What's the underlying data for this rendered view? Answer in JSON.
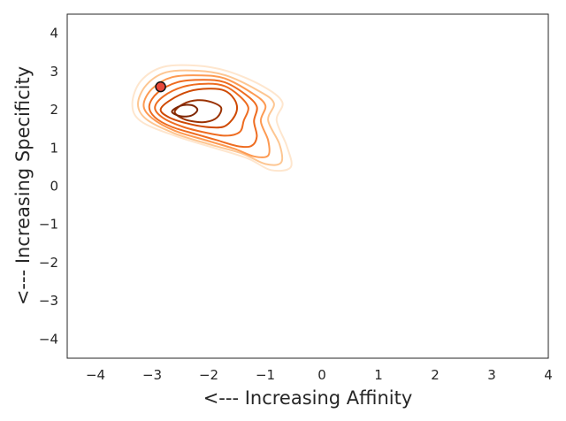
{
  "chart_data": {
    "type": "contour",
    "title": "",
    "xlabel": "<--- Increasing Affinity",
    "ylabel": "<--- Increasing Specificity",
    "xlim": [
      -4.5,
      4.0
    ],
    "ylim": [
      -4.5,
      4.5
    ],
    "xticks": [
      -4,
      -3,
      -2,
      -1,
      0,
      1,
      2,
      3,
      4
    ],
    "yticks": [
      -4,
      -3,
      -2,
      -1,
      0,
      1,
      2,
      3,
      4
    ],
    "xtick_labels": [
      "−4",
      "−3",
      "−2",
      "−1",
      "0",
      "1",
      "2",
      "3",
      "4"
    ],
    "ytick_labels": [
      "−4",
      "−3",
      "−2",
      "−1",
      "0",
      "1",
      "2",
      "3",
      "4"
    ],
    "grid": false,
    "colormap": [
      "#fee6ce",
      "#fdc692",
      "#fd9a52",
      "#ee6c20",
      "#cf4a04",
      "#9a3203",
      "#7f2704"
    ],
    "contour_levels": [
      {
        "level": 1,
        "points": [
          [
            -3.35,
            2.15
          ],
          [
            -3.2,
            2.75
          ],
          [
            -2.8,
            3.12
          ],
          [
            -2.2,
            3.15
          ],
          [
            -1.65,
            3.0
          ],
          [
            -1.05,
            2.62
          ],
          [
            -0.7,
            2.2
          ],
          [
            -0.8,
            1.72
          ],
          [
            -0.62,
            1.05
          ],
          [
            -0.55,
            0.5
          ],
          [
            -0.9,
            0.42
          ],
          [
            -1.3,
            0.72
          ],
          [
            -1.9,
            1.0
          ],
          [
            -2.6,
            1.32
          ],
          [
            -3.2,
            1.7
          ]
        ]
      },
      {
        "level": 2,
        "points": [
          [
            -3.25,
            2.15
          ],
          [
            -3.1,
            2.65
          ],
          [
            -2.75,
            2.98
          ],
          [
            -2.2,
            3.02
          ],
          [
            -1.7,
            2.9
          ],
          [
            -1.15,
            2.52
          ],
          [
            -0.85,
            2.18
          ],
          [
            -0.95,
            1.72
          ],
          [
            -0.75,
            1.1
          ],
          [
            -0.72,
            0.62
          ],
          [
            -1.0,
            0.58
          ],
          [
            -1.4,
            0.85
          ],
          [
            -1.95,
            1.08
          ],
          [
            -2.6,
            1.38
          ],
          [
            -3.1,
            1.75
          ]
        ]
      },
      {
        "level": 3,
        "points": [
          [
            -3.15,
            2.12
          ],
          [
            -3.0,
            2.55
          ],
          [
            -2.65,
            2.85
          ],
          [
            -2.15,
            2.9
          ],
          [
            -1.72,
            2.82
          ],
          [
            -1.25,
            2.45
          ],
          [
            -1.0,
            2.12
          ],
          [
            -1.08,
            1.7
          ],
          [
            -0.95,
            1.2
          ],
          [
            -0.95,
            0.8
          ],
          [
            -1.2,
            0.78
          ],
          [
            -1.55,
            0.98
          ],
          [
            -2.0,
            1.18
          ],
          [
            -2.6,
            1.45
          ],
          [
            -3.0,
            1.78
          ]
        ]
      },
      {
        "level": 4,
        "points": [
          [
            -3.05,
            2.1
          ],
          [
            -2.9,
            2.45
          ],
          [
            -2.55,
            2.72
          ],
          [
            -2.1,
            2.78
          ],
          [
            -1.72,
            2.72
          ],
          [
            -1.35,
            2.4
          ],
          [
            -1.15,
            2.08
          ],
          [
            -1.2,
            1.7
          ],
          [
            -1.15,
            1.3
          ],
          [
            -1.25,
            1.05
          ],
          [
            -1.5,
            1.05
          ],
          [
            -1.85,
            1.2
          ],
          [
            -2.2,
            1.35
          ],
          [
            -2.65,
            1.55
          ],
          [
            -2.95,
            1.8
          ]
        ]
      },
      {
        "level": 5,
        "points": [
          [
            -2.95,
            2.05
          ],
          [
            -2.8,
            2.35
          ],
          [
            -2.45,
            2.6
          ],
          [
            -2.05,
            2.68
          ],
          [
            -1.72,
            2.62
          ],
          [
            -1.45,
            2.35
          ],
          [
            -1.3,
            2.05
          ],
          [
            -1.38,
            1.72
          ],
          [
            -1.45,
            1.42
          ],
          [
            -1.7,
            1.32
          ],
          [
            -2.05,
            1.4
          ],
          [
            -2.45,
            1.55
          ],
          [
            -2.8,
            1.78
          ]
        ]
      },
      {
        "level": 6,
        "points": [
          [
            -2.85,
            2.0
          ],
          [
            -2.68,
            2.25
          ],
          [
            -2.35,
            2.48
          ],
          [
            -2.0,
            2.55
          ],
          [
            -1.72,
            2.5
          ],
          [
            -1.55,
            2.28
          ],
          [
            -1.5,
            2.02
          ],
          [
            -1.58,
            1.75
          ],
          [
            -1.75,
            1.55
          ],
          [
            -2.05,
            1.55
          ],
          [
            -2.4,
            1.65
          ],
          [
            -2.7,
            1.8
          ]
        ]
      },
      {
        "level": 7,
        "points": [
          [
            -2.6,
            1.95
          ],
          [
            -2.45,
            2.15
          ],
          [
            -2.2,
            2.25
          ],
          [
            -1.95,
            2.2
          ],
          [
            -1.78,
            2.05
          ],
          [
            -1.85,
            1.8
          ],
          [
            -2.05,
            1.68
          ],
          [
            -2.3,
            1.7
          ],
          [
            -2.5,
            1.8
          ]
        ]
      },
      {
        "level": 8,
        "points": [
          [
            -2.65,
            1.95
          ],
          [
            -2.5,
            2.1
          ],
          [
            -2.3,
            2.12
          ],
          [
            -2.2,
            2.0
          ],
          [
            -2.3,
            1.85
          ],
          [
            -2.5,
            1.83
          ]
        ]
      }
    ],
    "marker": {
      "x": -2.85,
      "y": 2.6
    }
  }
}
